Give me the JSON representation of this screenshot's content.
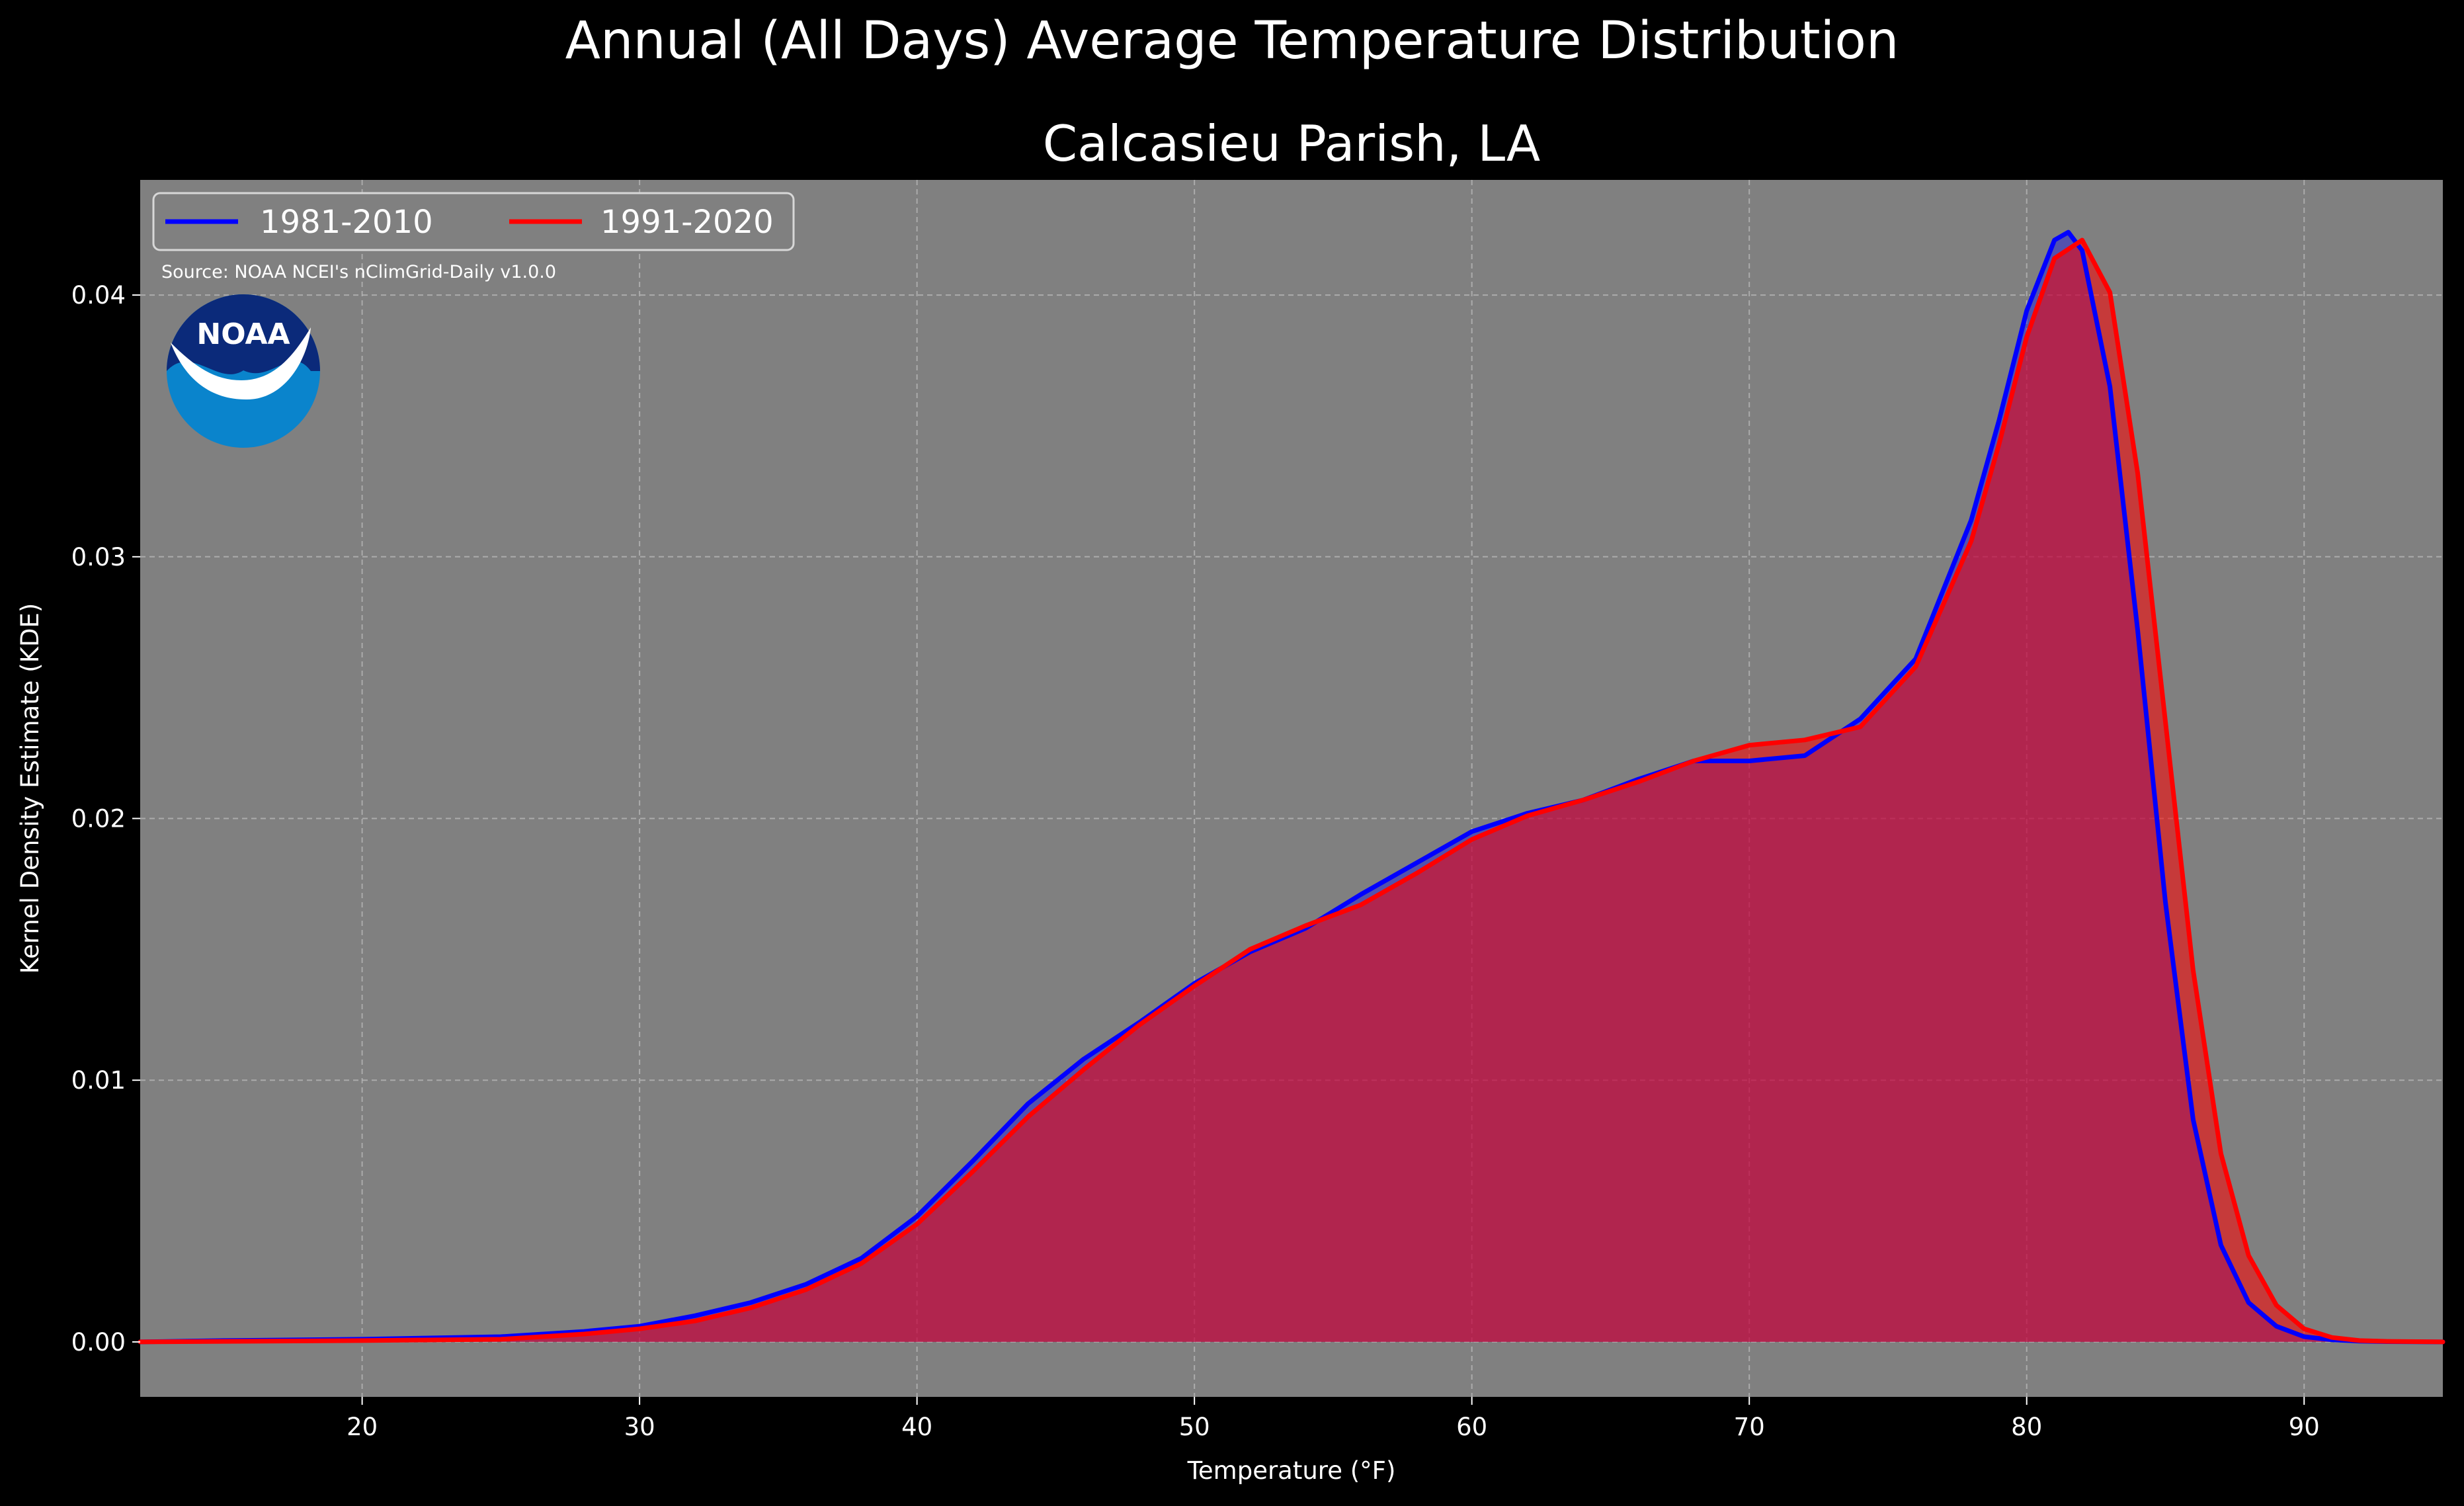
{
  "title": "Annual (All Days) Average Temperature Distribution",
  "subtitle": "Calcasieu Parish, LA",
  "source": "Source: NOAA NCEI's nClimGrid-Daily v1.0.0",
  "logo_text": "NOAA",
  "colors": {
    "figure_bg": "#000000",
    "axes_bg": "#808080",
    "series_1981": "#0000ff",
    "series_1991": "#ff0000",
    "overlap_fill": "#9b1f5c",
    "logo_dark": "#0b2a7a",
    "logo_light": "#0a84cc"
  },
  "chart_data": {
    "type": "area",
    "title": "Calcasieu Parish, LA",
    "xlabel": "Temperature (°F)",
    "ylabel": "Kernel Density Estimate (KDE)",
    "xlim": [
      12,
      95
    ],
    "ylim": [
      -0.0021,
      0.0444
    ],
    "x_ticks": [
      "20",
      "30",
      "40",
      "50",
      "60",
      "70",
      "80",
      "90"
    ],
    "y_ticks": [
      "0.00",
      "0.01",
      "0.02",
      "0.03",
      "0.04"
    ],
    "grid": true,
    "legend_position": "top-left",
    "series": [
      {
        "name": "1981-2010",
        "color": "#0000ff",
        "x": [
          12,
          15,
          20,
          25,
          28,
          30,
          32,
          34,
          36,
          38,
          40,
          42,
          44,
          46,
          48,
          50,
          52,
          54,
          56,
          58,
          60,
          62,
          64,
          66,
          68,
          70,
          72,
          74,
          76,
          78,
          79,
          80,
          81,
          81.5,
          82,
          83,
          84,
          85,
          86,
          87,
          88,
          89,
          90,
          91,
          92,
          93,
          95
        ],
        "y": [
          0.0,
          5e-05,
          0.0001,
          0.0002,
          0.0004,
          0.0006,
          0.001,
          0.0015,
          0.0022,
          0.0032,
          0.0048,
          0.0069,
          0.0091,
          0.0108,
          0.0122,
          0.0137,
          0.0149,
          0.0158,
          0.0171,
          0.0183,
          0.0195,
          0.0202,
          0.0207,
          0.0215,
          0.0222,
          0.0222,
          0.0224,
          0.0238,
          0.0261,
          0.0314,
          0.0352,
          0.0394,
          0.0421,
          0.0424,
          0.0417,
          0.0365,
          0.0272,
          0.0168,
          0.0085,
          0.0037,
          0.0015,
          0.0006,
          0.0002,
          8e-05,
          3e-05,
          1e-05,
          0.0
        ]
      },
      {
        "name": "1991-2020",
        "color": "#ff0000",
        "x": [
          12,
          15,
          20,
          25,
          28,
          30,
          32,
          34,
          36,
          38,
          40,
          42,
          44,
          46,
          48,
          50,
          52,
          54,
          56,
          58,
          60,
          62,
          64,
          66,
          68,
          70,
          72,
          74,
          76,
          78,
          79,
          80,
          81,
          82,
          83,
          84,
          85,
          86,
          87,
          88,
          89,
          90,
          91,
          92,
          93,
          95
        ],
        "y": [
          0.0,
          2e-05,
          5e-05,
          0.0001,
          0.0003,
          0.0005,
          0.0008,
          0.0013,
          0.002,
          0.003,
          0.0045,
          0.0065,
          0.0086,
          0.0104,
          0.0121,
          0.0136,
          0.015,
          0.0159,
          0.0167,
          0.0179,
          0.0192,
          0.0201,
          0.0207,
          0.0214,
          0.0222,
          0.0228,
          0.023,
          0.0235,
          0.0258,
          0.0306,
          0.0343,
          0.0384,
          0.0414,
          0.0421,
          0.0401,
          0.0332,
          0.0237,
          0.0142,
          0.0072,
          0.0033,
          0.0014,
          0.0005,
          0.00017,
          5e-05,
          2e-05,
          0.0
        ]
      }
    ]
  }
}
